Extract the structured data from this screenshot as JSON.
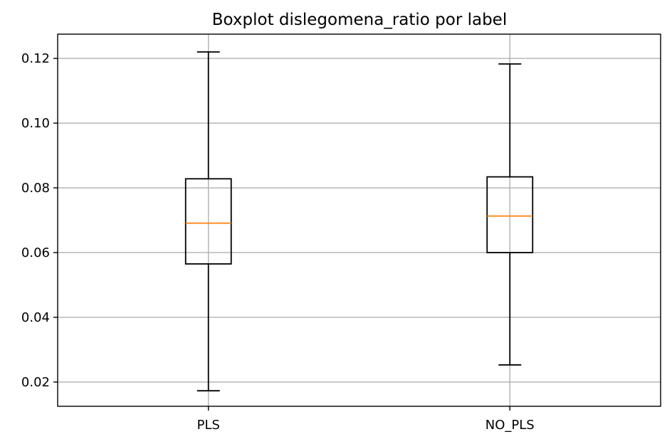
{
  "chart_data": {
    "type": "boxplot",
    "title": "Boxplot dislegomena_ratio por label",
    "xlabel": "",
    "ylabel": "",
    "categories": [
      "PLS",
      "NO_PLS"
    ],
    "series": [
      {
        "category": "PLS",
        "whisker_low": 0.0173,
        "q1": 0.0565,
        "median": 0.0691,
        "q3": 0.0828,
        "whisker_high": 0.122
      },
      {
        "category": "NO_PLS",
        "whisker_low": 0.0253,
        "q1": 0.06,
        "median": 0.0713,
        "q3": 0.0834,
        "whisker_high": 0.1183
      }
    ],
    "yticks": [
      0.02,
      0.04,
      0.06,
      0.08,
      0.1,
      0.12
    ],
    "ytick_labels": [
      "0.02",
      "0.04",
      "0.06",
      "0.08",
      "0.10",
      "0.12"
    ],
    "ylim": [
      0.0125,
      0.1275
    ],
    "grid": true,
    "colors": {
      "box": "#000000",
      "median": "#ff7f0e",
      "grid": "#b0b0b0"
    }
  }
}
